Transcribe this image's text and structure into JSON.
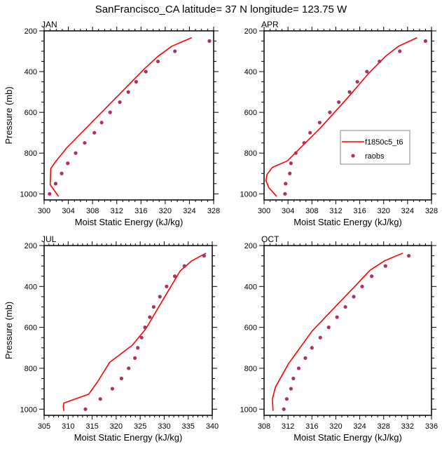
{
  "chart_data": {
    "type": "line",
    "title": "SanFrancisco_CA  latitude= 37 N longitude= 123.75 W",
    "legend": {
      "placement": "inside APR panel, right-center",
      "entries": [
        {
          "name": "f1850c5_t6",
          "style": "line",
          "color": "#ff0000"
        },
        {
          "name": "raobs",
          "style": "marker",
          "color": "#b03060"
        }
      ]
    },
    "panels": [
      {
        "label": "JAN",
        "xlabel": "Moist Static Energy (kJ/kg)",
        "ylabel": "Pressure (mb)",
        "xlim": [
          300,
          328
        ],
        "xticks": [
          300,
          304,
          308,
          312,
          316,
          320,
          324,
          328
        ],
        "xminor_step": 1,
        "ylim": [
          200,
          1030
        ],
        "yticks": [
          200,
          400,
          600,
          800,
          1000
        ],
        "yinverted": true,
        "grid": false,
        "series": [
          {
            "name": "f1850c5_t6",
            "type": "line",
            "mse": [
              324.4,
              321.1,
              318.8,
              316.6,
              303.7,
              301.9,
              301.1,
              301.0,
              301.6,
              302.4
            ],
            "pressure": [
              233,
              275,
              325,
              385,
              775,
              842,
              875,
              955,
              980,
              1013
            ]
          },
          {
            "name": "raobs",
            "type": "scatter",
            "mse": [
              327.3,
              321.6,
              318.8,
              316.8,
              315.2,
              313.9,
              312.5,
              310.9,
              309.5,
              308.3,
              306.7,
              305.2,
              303.9,
              302.9,
              301.9,
              300.9
            ],
            "pressure": [
              250,
              300,
              350,
              400,
              450,
              500,
              550,
              600,
              650,
              700,
              750,
              800,
              850,
              900,
              950,
              1000
            ]
          }
        ]
      },
      {
        "label": "APR",
        "xlabel": "Moist Static Energy (kJ/kg)",
        "ylabel": "",
        "xlim": [
          300,
          328
        ],
        "xticks": [
          300,
          304,
          308,
          312,
          316,
          320,
          324,
          328
        ],
        "xminor_step": 1,
        "ylim": [
          200,
          1030
        ],
        "yticks": [
          200,
          400,
          600,
          800,
          1000
        ],
        "yinverted": true,
        "grid": false,
        "series": [
          {
            "name": "f1850c5_t6",
            "type": "line",
            "mse": [
              325.6,
              322.5,
              320.3,
              317.5,
              314.0,
              309.3,
              303.9,
              301.4,
              300.5,
              300.3,
              300.8,
              302.1
            ],
            "pressure": [
              233,
              275,
              325,
              408,
              528,
              680,
              838,
              870,
              905,
              935,
              970,
              1012
            ]
          },
          {
            "name": "raobs",
            "type": "scatter",
            "mse": [
              327.0,
              322.7,
              319.3,
              317.2,
              315.6,
              314.3,
              312.5,
              311.0,
              309.3,
              307.7,
              306.7,
              305.3,
              304.5,
              304.3,
              303.6,
              303.5
            ],
            "pressure": [
              250,
              300,
              350,
              400,
              450,
              500,
              550,
              600,
              650,
              700,
              750,
              800,
              850,
              900,
              950,
              1000
            ]
          }
        ]
      },
      {
        "label": "JUL",
        "xlabel": "Moist Static Energy (kJ/kg)",
        "ylabel": "Pressure (mb)",
        "xlim": [
          305,
          340
        ],
        "xticks": [
          305,
          310,
          315,
          320,
          325,
          330,
          335,
          340
        ],
        "xminor_step": 1,
        "ylim": [
          200,
          1030
        ],
        "yticks": [
          200,
          400,
          600,
          800,
          1000
        ],
        "yinverted": true,
        "grid": false,
        "series": [
          {
            "name": "f1850c5_t6",
            "type": "line",
            "mse": [
              338.7,
              335.7,
              333.3,
              330.1,
              326.2,
              323.4,
              318.6,
              316.1,
              314.3,
              309.1,
              309.0,
              309.1
            ],
            "pressure": [
              237,
              275,
              325,
              451,
              606,
              686,
              772,
              867,
              926,
              970,
              985,
              1008
            ]
          },
          {
            "name": "raobs",
            "type": "scatter",
            "mse": [
              338.3,
              334.2,
              332.2,
              330.5,
              329.1,
              327.8,
              327.0,
              326.0,
              325.3,
              324.5,
              323.9,
              322.6,
              321.1,
              319.2,
              316.7,
              313.6
            ],
            "pressure": [
              250,
              300,
              350,
              400,
              450,
              500,
              550,
              600,
              650,
              700,
              750,
              800,
              850,
              900,
              950,
              1000
            ]
          }
        ]
      },
      {
        "label": "OCT",
        "xlabel": "Moist Static Energy (kJ/kg)",
        "ylabel": "",
        "xlim": [
          308,
          336
        ],
        "xticks": [
          308,
          312,
          316,
          320,
          324,
          328,
          332,
          336
        ],
        "xminor_step": 1,
        "ylim": [
          200,
          1030
        ],
        "yticks": [
          200,
          400,
          600,
          800,
          1000
        ],
        "yinverted": true,
        "grid": false,
        "series": [
          {
            "name": "f1850c5_t6",
            "type": "line",
            "mse": [
              331.2,
              328.1,
              325.7,
              323.4,
              320.5,
              316.0,
              312.1,
              309.9,
              309.4,
              309.5
            ],
            "pressure": [
              237,
              275,
              321,
              393,
              481,
              619,
              777,
              892,
              950,
              1008
            ]
          },
          {
            "name": "raobs",
            "type": "scatter",
            "mse": [
              332.2,
              328.3,
              326.0,
              324.4,
              323.0,
              321.6,
              320.2,
              318.8,
              317.4,
              316.0,
              314.9,
              313.8,
              312.9,
              312.5,
              311.8,
              311.3
            ],
            "pressure": [
              250,
              300,
              350,
              400,
              450,
              500,
              550,
              600,
              650,
              700,
              750,
              800,
              850,
              900,
              950,
              1000
            ]
          }
        ]
      }
    ]
  }
}
